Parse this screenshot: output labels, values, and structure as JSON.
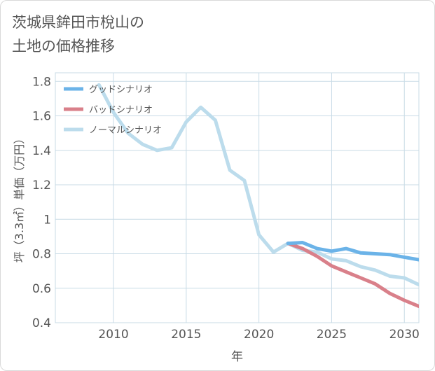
{
  "page": {
    "title_lines": [
      "茨城県鉾田市梲山の",
      "土地の価格推移"
    ]
  },
  "colors": {
    "good": "#6bb3e8",
    "bad": "#d9808a",
    "normal": "#bcdcec",
    "grid": "#c8dbe6",
    "text": "#555555"
  },
  "chart_data": {
    "type": "line",
    "title": "茨城県鉾田市梲山の土地の価格推移",
    "xlabel": "年",
    "ylabel": "坪（3.3㎡）単価（万円）",
    "xlim": [
      2006,
      2031
    ],
    "ylim": [
      0.4,
      1.85
    ],
    "x_ticks": [
      2010,
      2015,
      2020,
      2025,
      2030
    ],
    "y_ticks": [
      0.4,
      0.6,
      0.8,
      1,
      1.2,
      1.4,
      1.6,
      1.8
    ],
    "y_tick_labels": [
      "0.4",
      "0.6",
      "0.8",
      "1",
      "1.2",
      "1.4",
      "1.6",
      "1.8"
    ],
    "grid": true,
    "legend_position": "top-left",
    "series": [
      {
        "name": "グッドシナリオ",
        "color_key": "good",
        "x": [
          2022,
          2023,
          2024,
          2025,
          2026,
          2027,
          2028,
          2029,
          2030,
          2031
        ],
        "y": [
          0.86,
          0.865,
          0.83,
          0.815,
          0.83,
          0.805,
          0.8,
          0.795,
          0.78,
          0.765
        ]
      },
      {
        "name": "バッドシナリオ",
        "color_key": "bad",
        "x": [
          2022,
          2023,
          2024,
          2025,
          2026,
          2027,
          2028,
          2029,
          2030,
          2031
        ],
        "y": [
          0.86,
          0.83,
          0.785,
          0.73,
          0.695,
          0.66,
          0.625,
          0.57,
          0.53,
          0.495
        ]
      },
      {
        "name": "ノーマルシナリオ",
        "color_key": "normal",
        "x": [
          2009,
          2010,
          2011,
          2012,
          2013,
          2014,
          2015,
          2016,
          2017,
          2018,
          2019,
          2020,
          2021,
          2022,
          2023,
          2024,
          2025,
          2026,
          2027,
          2028,
          2029,
          2030,
          2031
        ],
        "y": [
          1.78,
          1.62,
          1.5,
          1.435,
          1.4,
          1.415,
          1.565,
          1.65,
          1.575,
          1.285,
          1.225,
          0.91,
          0.81,
          0.86,
          0.82,
          0.81,
          0.77,
          0.76,
          0.725,
          0.705,
          0.67,
          0.66,
          0.62
        ]
      }
    ]
  }
}
